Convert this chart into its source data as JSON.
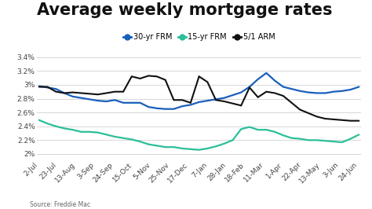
{
  "title": "Average weekly mortgage rates",
  "source": "Source: Freddie Mac",
  "legend": [
    "30-yr FRM",
    "15-yr FRM",
    "5/1 ARM"
  ],
  "legend_colors": [
    "#1a5fbb",
    "#2abf9a",
    "#111111"
  ],
  "x_labels": [
    "2-Jul",
    "23-Jul",
    "13-Aug",
    "3-Sep",
    "24-Sep",
    "15-Oct",
    "5-Nov",
    "25-Nov",
    "17-Dec",
    "7-Jan",
    "28-Jan",
    "18-Feb",
    "11-Mar",
    "1-Apr",
    "22-Apr",
    "13-May",
    "3-Jun",
    "24-Jun"
  ],
  "y_ticks": [
    2.0,
    2.2,
    2.4,
    2.6,
    2.8,
    3.0,
    3.2,
    3.4
  ],
  "y_tick_labels": [
    "2%",
    "2.2%",
    "2.4%",
    "2.6%",
    "2.8%",
    "3%",
    "3.2%",
    "3.4%"
  ],
  "ylim": [
    1.93,
    3.5
  ],
  "series_30yr": [
    2.98,
    2.96,
    2.94,
    2.88,
    2.83,
    2.81,
    2.79,
    2.77,
    2.76,
    2.78,
    2.74,
    2.74,
    2.74,
    2.68,
    2.66,
    2.65,
    2.65,
    2.69,
    2.71,
    2.75,
    2.77,
    2.79,
    2.81,
    2.85,
    2.89,
    2.97,
    3.08,
    3.17,
    3.06,
    2.97,
    2.94,
    2.91,
    2.89,
    2.88,
    2.88,
    2.9,
    2.91,
    2.93,
    2.97
  ],
  "series_15yr": [
    2.49,
    2.44,
    2.4,
    2.37,
    2.35,
    2.32,
    2.32,
    2.31,
    2.28,
    2.25,
    2.23,
    2.21,
    2.18,
    2.14,
    2.12,
    2.1,
    2.1,
    2.08,
    2.07,
    2.06,
    2.08,
    2.11,
    2.15,
    2.2,
    2.36,
    2.39,
    2.35,
    2.35,
    2.32,
    2.27,
    2.23,
    2.22,
    2.2,
    2.2,
    2.19,
    2.18,
    2.17,
    2.22,
    2.28
  ],
  "series_arm": [
    2.97,
    2.97,
    2.9,
    2.88,
    2.89,
    2.88,
    2.87,
    2.86,
    2.88,
    2.9,
    2.9,
    3.12,
    3.09,
    3.13,
    3.12,
    3.07,
    2.78,
    2.78,
    2.74,
    3.12,
    3.04,
    2.78,
    2.76,
    2.73,
    2.7,
    2.96,
    2.82,
    2.9,
    2.88,
    2.84,
    2.74,
    2.64,
    2.59,
    2.54,
    2.51,
    2.5,
    2.49,
    2.48,
    2.48
  ],
  "background_color": "#ffffff",
  "grid_color": "#d0d0d0",
  "title_fontsize": 15,
  "tick_fontsize": 6.5
}
